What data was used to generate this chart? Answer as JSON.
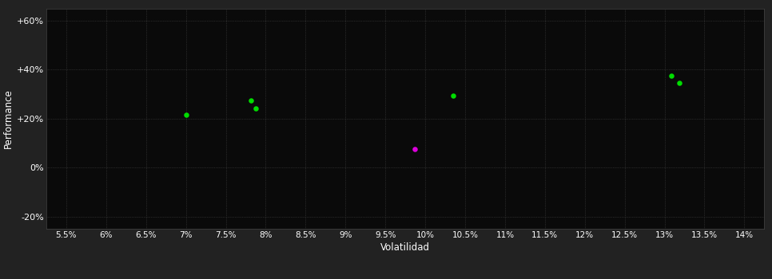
{
  "background_color": "#222222",
  "plot_bg_color": "#0a0a0a",
  "grid_color": "#444444",
  "text_color": "#ffffff",
  "xlabel": "Volatilidad",
  "ylabel": "Performance",
  "xticks": [
    5.5,
    6.0,
    6.5,
    7.0,
    7.5,
    8.0,
    8.5,
    9.0,
    9.5,
    10.0,
    10.5,
    11.0,
    11.5,
    12.0,
    12.5,
    13.0,
    13.5,
    14.0
  ],
  "yticks": [
    -20,
    0,
    20,
    40,
    60
  ],
  "xlim": [
    5.25,
    14.25
  ],
  "ylim": [
    -25,
    65
  ],
  "green_points": [
    [
      7.0,
      21.5
    ],
    [
      7.82,
      27.5
    ],
    [
      7.88,
      24.0
    ],
    [
      10.35,
      29.5
    ],
    [
      13.08,
      37.5
    ],
    [
      13.18,
      34.5
    ]
  ],
  "magenta_points": [
    [
      9.87,
      7.5
    ]
  ],
  "green_color": "#00dd00",
  "magenta_color": "#dd00dd",
  "marker_size": 22
}
